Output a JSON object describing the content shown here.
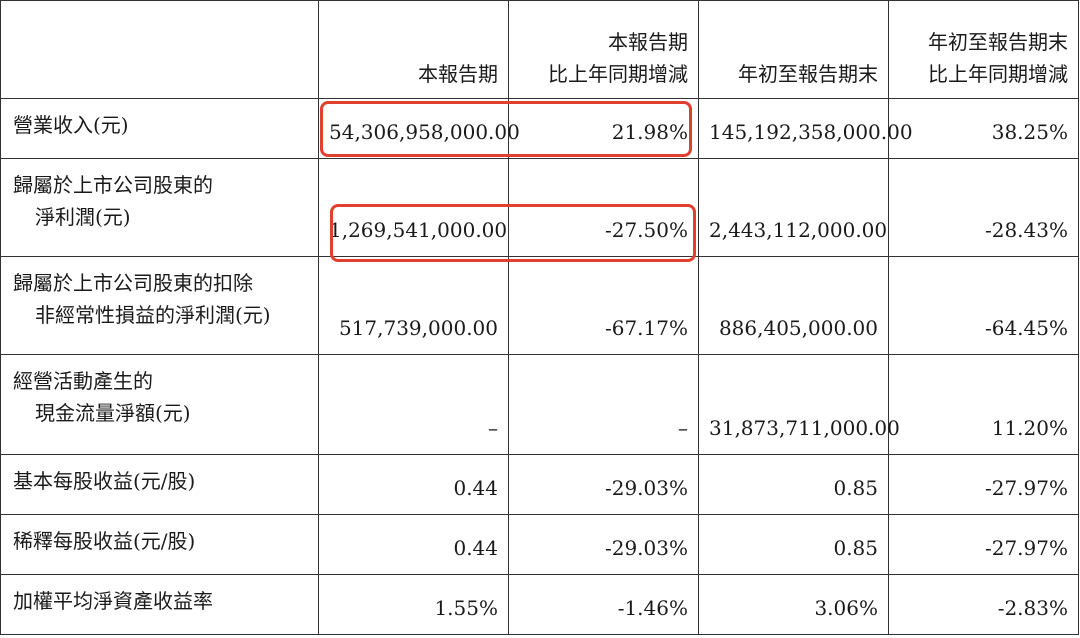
{
  "headers": {
    "c1": "本報告期",
    "c2_line1": "本報告期",
    "c2_line2": "比上年同期增減",
    "c3": "年初至報告期末",
    "c4_line1": "年初至報告期末",
    "c4_line2": "比上年同期增減"
  },
  "rows": [
    {
      "label1": "營業收入(元)",
      "label2": "",
      "v1": "54,306,958,000.00",
      "v2": "21.98%",
      "v3": "145,192,358,000.00",
      "v4": "38.25%"
    },
    {
      "label1": "歸屬於上市公司股東的",
      "label2": "淨利潤(元)",
      "v1": "1,269,541,000.00",
      "v2": "-27.50%",
      "v3": "2,443,112,000.00",
      "v4": "-28.43%"
    },
    {
      "label1": "歸屬於上市公司股東的扣除",
      "label2": "非經常性損益的淨利潤(元)",
      "v1": "517,739,000.00",
      "v2": "-67.17%",
      "v3": "886,405,000.00",
      "v4": "-64.45%"
    },
    {
      "label1": "經營活動產生的",
      "label2": "現金流量淨額(元)",
      "v1": "–",
      "v2": "–",
      "v3": "31,873,711,000.00",
      "v4": "11.20%"
    },
    {
      "label1": "基本每股收益(元/股)",
      "label2": "",
      "v1": "0.44",
      "v2": "-29.03%",
      "v3": "0.85",
      "v4": "-27.97%"
    },
    {
      "label1": "稀釋每股收益(元/股)",
      "label2": "",
      "v1": "0.44",
      "v2": "-29.03%",
      "v3": "0.85",
      "v4": "-27.97%"
    },
    {
      "label1": "加權平均淨資產收益率",
      "label2": "",
      "v1": "1.55%",
      "v2": "-1.46%",
      "v3": "3.06%",
      "v4": "-2.83%"
    }
  ],
  "colors": {
    "highlight": "#e2402e",
    "border": "#333333"
  }
}
